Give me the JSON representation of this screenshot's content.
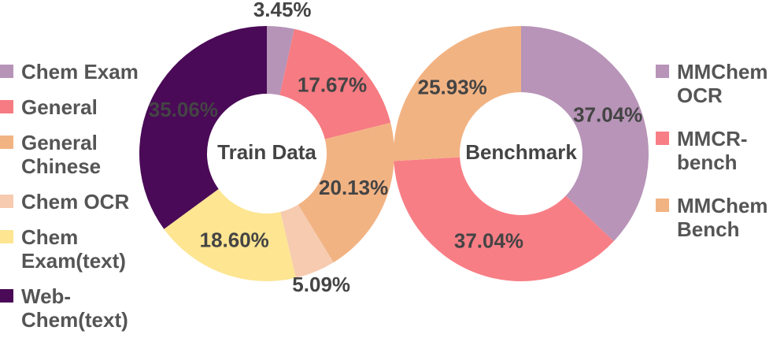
{
  "chart_data": [
    {
      "type": "pie",
      "title": "Train Data",
      "categories": [
        "Chem Exam",
        "General",
        "General Chinese",
        "Chem OCR",
        "Chem Exam(text)",
        "Web-Chem(text)"
      ],
      "values": [
        3.45,
        17.67,
        20.13,
        5.09,
        18.6,
        35.06
      ],
      "value_labels": [
        "3.45%",
        "17.67%",
        "20.13%",
        "5.09%",
        "18.60%",
        "35.06%"
      ],
      "colors": [
        "#b694b8",
        "#f77b82",
        "#f2b383",
        "#f6cbb0",
        "#fde592",
        "#4a0a57"
      ]
    },
    {
      "type": "pie",
      "title": "Benchmark",
      "categories": [
        "MMChem OCR",
        "MMCR-bench",
        "MMChem Bench"
      ],
      "values": [
        37.04,
        37.04,
        25.93
      ],
      "value_labels": [
        "37.04%",
        "37.04%",
        "25.93%"
      ],
      "colors": [
        "#b794b8",
        "#f87e86",
        "#f2b383"
      ]
    }
  ]
}
